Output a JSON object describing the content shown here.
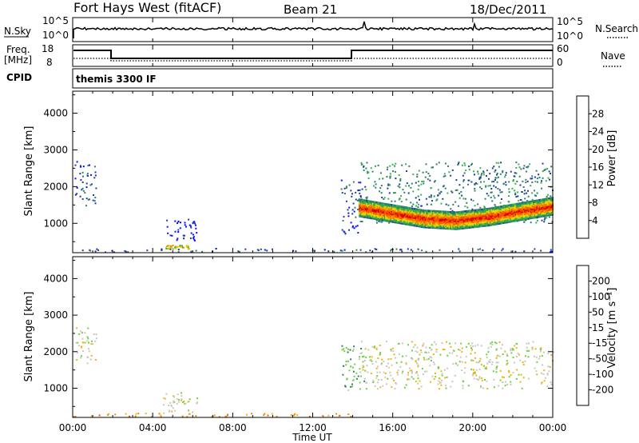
{
  "header": {
    "site": "Fort Hays West (fitACF)",
    "beam": "Beam 21",
    "date": "18/Dec/2011"
  },
  "status_panels": {
    "nsky_label": "N.Sky",
    "nsky_ticks": [
      "10^5",
      "10^0"
    ],
    "nsearch_label": "N.Search",
    "nsearch_ticks": [
      "10^5",
      "10^0"
    ],
    "freq_label_1": "Freq.",
    "freq_label_2": "[MHz]",
    "freq_ticks": [
      "18",
      "8"
    ],
    "nave_label": "Nave",
    "nave_ticks": [
      "60",
      "0"
    ],
    "cpid_label": "CPID",
    "cpid_value": "themis 3300 IF"
  },
  "chart_data": [
    {
      "type": "heatmap",
      "panel": "power",
      "ylabel": "Slant Range [km]",
      "y_ticks": [
        "4000",
        "3000",
        "2000",
        "1000"
      ],
      "y_tick_values": [
        4000,
        3000,
        2000,
        1000
      ],
      "ylim": [
        200,
        4600
      ],
      "colorbar_label": "Power [dB]",
      "colorbar_ticks": [
        "28",
        "24",
        "20",
        "16",
        "12",
        "8",
        "4"
      ],
      "colorbar_colors": [
        "#0010ff",
        "#203ca0",
        "#2f7f6a",
        "#35b24a",
        "#e8d400",
        "#f28c00",
        "#f25200",
        "#e00000"
      ],
      "scatter_regions": [
        {
          "t0": 0.1,
          "t1": 1.2,
          "r0": 1500,
          "r1": 2700,
          "level": 1
        },
        {
          "t0": 4.6,
          "t1": 5.8,
          "r0": 320,
          "r1": 420,
          "level": 4
        },
        {
          "t0": 4.5,
          "t1": 6.2,
          "r0": 550,
          "r1": 1150,
          "level": 0
        },
        {
          "t0": 13.4,
          "t1": 14.4,
          "r0": 700,
          "r1": 2200,
          "level": 1
        },
        {
          "t0": 14.3,
          "t1": 24,
          "r0": 1000,
          "r1": 2700,
          "level": 2
        },
        {
          "t0": 0,
          "t1": 24,
          "r0": 230,
          "r1": 330,
          "level": 1
        }
      ],
      "strong_band": {
        "start_hour": 14.3,
        "end_hour": 24,
        "center_km": [
          1450,
          1300,
          1150,
          1100,
          1200,
          1350,
          1500
        ],
        "halfwidth_km": 230
      }
    },
    {
      "type": "heatmap",
      "panel": "velocity",
      "xlabel": "Time UT",
      "ylabel": "Slant Range [km]",
      "x_ticks": [
        "00:00",
        "04:00",
        "08:00",
        "12:00",
        "16:00",
        "20:00",
        "00:00"
      ],
      "x_tick_hours": [
        0,
        4,
        8,
        12,
        16,
        20,
        24
      ],
      "xlim": [
        0,
        24
      ],
      "y_ticks": [
        "4000",
        "3000",
        "2000",
        "1000"
      ],
      "y_tick_values": [
        4000,
        3000,
        2000,
        1000
      ],
      "ylim": [
        200,
        4600
      ],
      "colorbar_label": "Velocity [m s⁻¹]",
      "colorbar_ticks": [
        "200",
        "100",
        "50",
        "15",
        "-15",
        "-50",
        "-100",
        "-200"
      ],
      "colorbar_colors": [
        "#e00000",
        "#f25200",
        "#f28c00",
        "#f2b400",
        "#c8c8c0",
        "#6cd23c",
        "#2f7f6a",
        "#203ca0",
        "#0010ff"
      ],
      "scatter_regions": [
        {
          "t0": 0.1,
          "t1": 1.2,
          "r0": 1700,
          "r1": 2700,
          "level": 4
        },
        {
          "t0": 4.5,
          "t1": 6.2,
          "r0": 320,
          "r1": 900,
          "level": 4
        },
        {
          "t0": 0,
          "t1": 14,
          "r0": 230,
          "r1": 330,
          "level": 2
        },
        {
          "t0": 13.4,
          "t1": 14.6,
          "r0": 900,
          "r1": 2200,
          "level": 5
        },
        {
          "t0": 14.4,
          "t1": 24,
          "r0": 1000,
          "r1": 2300,
          "level": 4
        }
      ]
    }
  ]
}
